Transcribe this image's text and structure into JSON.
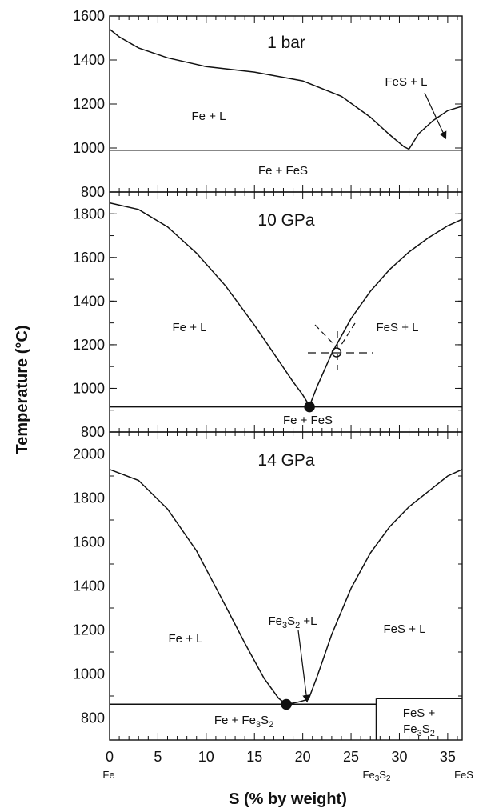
{
  "chart_data": {
    "type": "line",
    "xlabel": "S (% by weight)",
    "ylabel": "Temperature (°C)",
    "xlim": [
      0,
      36.5
    ],
    "x_ticks": [
      0,
      5,
      10,
      15,
      20,
      25,
      30,
      35
    ],
    "x_compound_labels": [
      {
        "x": 0,
        "label": "Fe"
      },
      {
        "x": 27.6,
        "label": "Fe3S2"
      },
      {
        "x": 36.5,
        "label": "FeS"
      }
    ],
    "panels": [
      {
        "title": "1 bar",
        "ylim": [
          800,
          1600
        ],
        "y_ticks": [
          800,
          1000,
          1200,
          1400,
          1600
        ],
        "series": [
          {
            "x": [
              0,
              1,
              3,
              6,
              10,
              15,
              20,
              24,
              27,
              29,
              30.5,
              31
            ],
            "y": [
              1540,
              1505,
              1455,
              1410,
              1370,
              1345,
              1305,
              1235,
              1140,
              1060,
              1005,
              995
            ]
          },
          {
            "x": [
              31,
              32,
              33.5,
              35,
              36.5
            ],
            "y": [
              995,
              1065,
              1125,
              1170,
              1190
            ]
          },
          {
            "x": [
              0,
              36.5
            ],
            "y": [
              990,
              990
            ]
          }
        ],
        "regions": [
          {
            "label": "Fe + L",
            "x": 8.5,
            "y": 1140
          },
          {
            "label": "FeS + L",
            "x": 33.5,
            "y": 1295
          },
          {
            "label": "Fe + FeS",
            "x": 14.5,
            "y": 895
          }
        ]
      },
      {
        "title": "10 GPa",
        "ylim": [
          800,
          1900
        ],
        "y_ticks": [
          800,
          1000,
          1200,
          1400,
          1600,
          1800
        ],
        "series": [
          {
            "x": [
              0,
              3,
              6,
              9,
              12,
              15,
              17,
              19,
              20,
              20.7
            ],
            "y": [
              1850,
              1820,
              1740,
              1620,
              1470,
              1290,
              1160,
              1030,
              970,
              920
            ]
          },
          {
            "x": [
              20.7,
              21.5,
              23,
              25,
              27,
              29,
              31,
              33,
              35,
              36.5
            ],
            "y": [
              920,
              1010,
              1160,
              1320,
              1445,
              1545,
              1625,
              1690,
              1745,
              1775
            ]
          },
          {
            "x": [
              0,
              36.5
            ],
            "y": [
              915,
              915
            ]
          }
        ],
        "points": [
          {
            "x": 20.7,
            "y": 915,
            "filled": true
          },
          {
            "x": 23.5,
            "y": 1165,
            "filled": false
          }
        ],
        "regions": [
          {
            "label": "Fe + L",
            "x": 8.5,
            "y": 1280
          },
          {
            "label": "FeS + L",
            "x": 30.5,
            "y": 1280
          },
          {
            "label": "Fe + FeS",
            "x": 20.5,
            "y": 855
          }
        ]
      },
      {
        "title": "14 GPa",
        "ylim": [
          700,
          2100
        ],
        "y_ticks": [
          800,
          1000,
          1200,
          1400,
          1600,
          1800,
          2000
        ],
        "series": [
          {
            "x": [
              0,
              3,
              6,
              9,
              12,
              14,
              16,
              17.5,
              18.3
            ],
            "y": [
              1930,
              1880,
              1750,
              1560,
              1310,
              1140,
              980,
              890,
              862
            ]
          },
          {
            "x": [
              18.3,
              19.5,
              20.6
            ],
            "y": [
              862,
              872,
              885
            ]
          },
          {
            "x": [
              20.6,
              21.5,
              23,
              25,
              27,
              29,
              31,
              33,
              35,
              36.5
            ],
            "y": [
              885,
              990,
              1180,
              1390,
              1550,
              1670,
              1760,
              1830,
              1900,
              1930
            ]
          },
          {
            "x": [
              0,
              27.6
            ],
            "y": [
              863,
              863
            ]
          },
          {
            "x": [
              27.6,
              36.5
            ],
            "y": [
              888,
              888
            ]
          },
          {
            "x": [
              27.6,
              27.6
            ],
            "y": [
              700,
              888
            ]
          }
        ],
        "points": [
          {
            "x": 18.3,
            "y": 862,
            "filled": true
          }
        ],
        "regions": [
          {
            "label": "Fe + L",
            "x": 8.5,
            "y": 1040
          },
          {
            "label": "FeS + L",
            "x": 30.5,
            "y": 1125
          },
          {
            "label": "Fe3S2 +L",
            "x": 18.5,
            "y": 1200
          },
          {
            "label": "Fe + Fe3S2",
            "x": 13,
            "y": 780
          },
          {
            "label": "FeS + Fe3S2",
            "x": 32,
            "y": 800
          }
        ]
      }
    ]
  }
}
